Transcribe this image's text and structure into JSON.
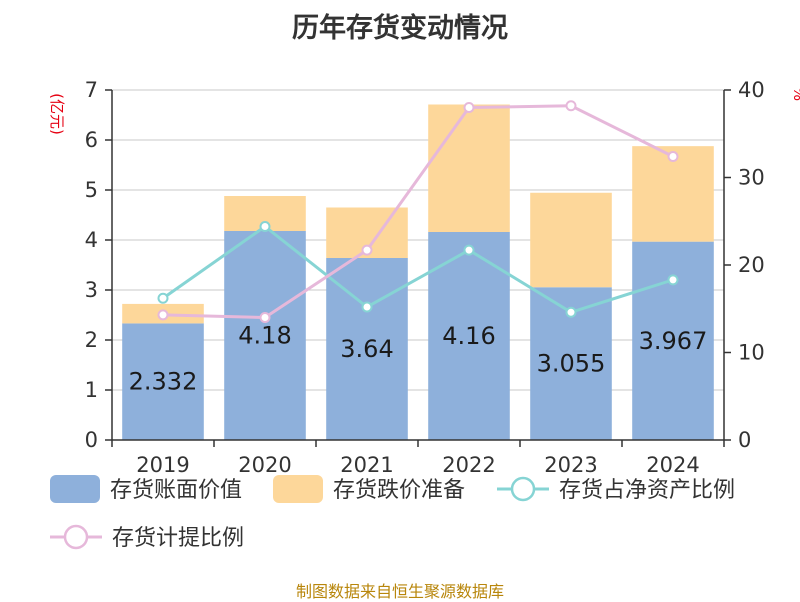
{
  "title": "历年存货变动情况",
  "source": "制图数据来自恒生聚源数据库",
  "chart_data": {
    "type": "bar",
    "title": "历年存货变动情况",
    "categories": [
      "2019",
      "2020",
      "2021",
      "2022",
      "2023",
      "2024"
    ],
    "left_axis": {
      "label": "(亿元)",
      "ylim": [
        0,
        7
      ],
      "ticks": [
        "0",
        "1",
        "2",
        "3",
        "4",
        "5",
        "6",
        "7"
      ]
    },
    "right_axis": {
      "label": "%",
      "ylim": [
        0,
        40
      ],
      "ticks": [
        "0",
        "10",
        "20",
        "30",
        "40"
      ]
    },
    "grid": true,
    "legend_position": "bottom",
    "series": [
      {
        "name": "存货账面价值",
        "kind": "bar",
        "axis": "left",
        "stack": "inv",
        "color": "#8eb0db",
        "values": [
          2.332,
          4.18,
          3.64,
          4.16,
          3.055,
          3.967
        ],
        "labels": [
          "2.332",
          "4.18",
          "3.64",
          "4.16",
          "3.055",
          "3.967"
        ]
      },
      {
        "name": "存货跌价准备",
        "kind": "bar",
        "axis": "left",
        "stack": "inv",
        "color": "#fdd79a",
        "values": [
          0.39,
          0.7,
          1.01,
          2.55,
          1.89,
          1.91
        ]
      },
      {
        "name": "存货占净资产比例",
        "kind": "line",
        "axis": "right",
        "color": "#86d4d4",
        "values": [
          16.2,
          24.4,
          15.2,
          21.7,
          14.6,
          18.3
        ]
      },
      {
        "name": "存货计提比例",
        "kind": "line",
        "axis": "right",
        "color": "#e6b8da",
        "values": [
          14.3,
          14.0,
          21.7,
          38.0,
          38.2,
          32.4
        ]
      }
    ]
  }
}
